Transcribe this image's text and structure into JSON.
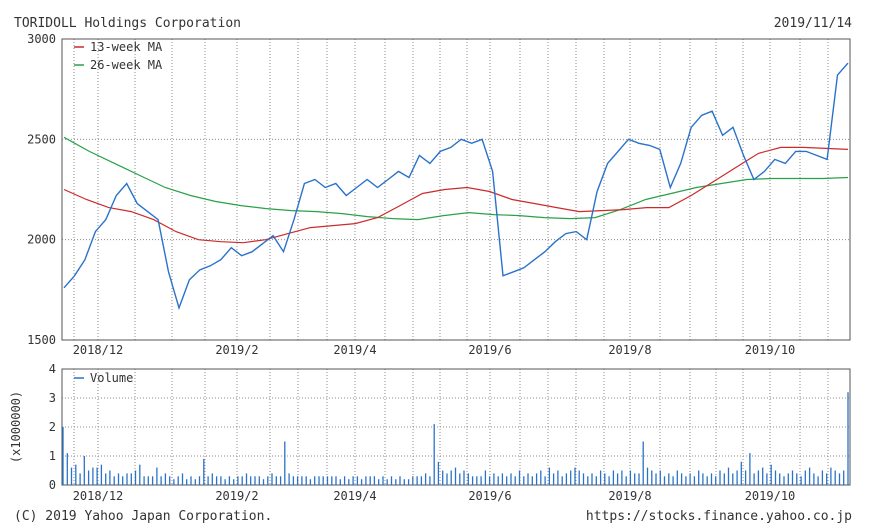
{
  "header": {
    "company": "TORIDOLL Holdings Corporation",
    "date": "2019/11/14"
  },
  "footer": {
    "copyright": "(C) 2019 Yahoo Japan Corporation.",
    "url": "https://stocks.finance.yahoo.co.jp"
  },
  "colors": {
    "price": "#2a72c9",
    "ma13": "#cc2a2a",
    "ma26": "#2aa048",
    "volume": "#2a72c9",
    "grid": "#8c8c8c"
  },
  "chart_data": [
    {
      "type": "line",
      "title": "TORIDOLL Holdings Corporation",
      "ylim": [
        1500,
        3000
      ],
      "yticks": [
        1500,
        2000,
        2500,
        3000
      ],
      "grid": true,
      "legend_position": "top-left",
      "x_ticks": [
        "2018/12",
        "2019/2",
        "2019/4",
        "2019/6",
        "2019/8",
        "2019/10"
      ],
      "series": [
        {
          "name": "",
          "color": "#2a72c9",
          "values": [
            1760,
            1820,
            1900,
            2040,
            2100,
            2220,
            2280,
            2180,
            2140,
            2100,
            1840,
            1660,
            1800,
            1850,
            1870,
            1900,
            1960,
            1920,
            1940,
            1980,
            2020,
            1940,
            2100,
            2280,
            2300,
            2260,
            2280,
            2220,
            2260,
            2300,
            2260,
            2300,
            2340,
            2310,
            2420,
            2380,
            2440,
            2460,
            2500,
            2480,
            2500,
            2340,
            1820,
            1840,
            1860,
            1900,
            1940,
            1990,
            2030,
            2040,
            2000,
            2240,
            2380,
            2440,
            2500,
            2480,
            2470,
            2450,
            2260,
            2380,
            2560,
            2620,
            2640,
            2520,
            2560,
            2420,
            2300,
            2340,
            2400,
            2380,
            2440,
            2440,
            2420,
            2400,
            2820,
            2880
          ]
        },
        {
          "name": "13-week MA",
          "color": "#cc2a2a",
          "values": [
            2250,
            2200,
            2160,
            2140,
            2100,
            2040,
            2000,
            1990,
            1985,
            2000,
            2030,
            2060,
            2070,
            2080,
            2110,
            2170,
            2230,
            2250,
            2260,
            2240,
            2200,
            2180,
            2160,
            2140,
            2145,
            2150,
            2160,
            2160,
            2220,
            2290,
            2360,
            2430,
            2460,
            2460,
            2455,
            2450
          ]
        },
        {
          "name": "26-week MA",
          "color": "#2aa048",
          "values": [
            2510,
            2440,
            2380,
            2320,
            2260,
            2220,
            2190,
            2170,
            2155,
            2145,
            2140,
            2130,
            2115,
            2105,
            2100,
            2120,
            2135,
            2125,
            2120,
            2110,
            2105,
            2110,
            2150,
            2200,
            2230,
            2260,
            2280,
            2300,
            2305,
            2305,
            2305,
            2310
          ]
        }
      ]
    },
    {
      "type": "bar",
      "ylabel": "(x1000000)",
      "ylim": [
        0,
        4
      ],
      "yticks": [
        0,
        1,
        2,
        3,
        4
      ],
      "grid": true,
      "legend_position": "top-left",
      "x_ticks": [
        "2018/12",
        "2019/2",
        "2019/4",
        "2019/6",
        "2019/8",
        "2019/10"
      ],
      "series": [
        {
          "name": "Volume",
          "color": "#2a72c9",
          "values": [
            2.0,
            1.1,
            0.6,
            0.7,
            0.4,
            1.0,
            0.5,
            0.6,
            0.6,
            0.7,
            0.4,
            0.5,
            0.3,
            0.4,
            0.3,
            0.4,
            0.4,
            0.5,
            0.7,
            0.3,
            0.3,
            0.3,
            0.6,
            0.3,
            0.4,
            0.3,
            0.2,
            0.3,
            0.4,
            0.2,
            0.3,
            0.2,
            0.3,
            0.9,
            0.3,
            0.4,
            0.3,
            0.3,
            0.2,
            0.3,
            0.2,
            0.3,
            0.3,
            0.4,
            0.3,
            0.3,
            0.3,
            0.2,
            0.3,
            0.4,
            0.3,
            0.3,
            1.5,
            0.4,
            0.3,
            0.3,
            0.3,
            0.3,
            0.2,
            0.3,
            0.3,
            0.3,
            0.3,
            0.3,
            0.3,
            0.2,
            0.3,
            0.2,
            0.3,
            0.3,
            0.2,
            0.3,
            0.3,
            0.3,
            0.2,
            0.3,
            0.2,
            0.3,
            0.2,
            0.3,
            0.2,
            0.2,
            0.3,
            0.3,
            0.3,
            0.4,
            0.3,
            2.1,
            0.8,
            0.5,
            0.4,
            0.5,
            0.6,
            0.4,
            0.5,
            0.4,
            0.3,
            0.3,
            0.3,
            0.5,
            0.3,
            0.4,
            0.3,
            0.4,
            0.3,
            0.4,
            0.3,
            0.5,
            0.3,
            0.4,
            0.3,
            0.4,
            0.5,
            0.3,
            0.6,
            0.4,
            0.5,
            0.3,
            0.4,
            0.5,
            0.6,
            0.5,
            0.4,
            0.3,
            0.4,
            0.3,
            0.5,
            0.4,
            0.3,
            0.5,
            0.4,
            0.5,
            0.3,
            0.5,
            0.4,
            0.4,
            1.5,
            0.6,
            0.5,
            0.4,
            0.5,
            0.3,
            0.4,
            0.3,
            0.5,
            0.4,
            0.3,
            0.4,
            0.3,
            0.5,
            0.4,
            0.3,
            0.4,
            0.3,
            0.5,
            0.4,
            0.6,
            0.4,
            0.5,
            0.8,
            0.5,
            1.1,
            0.4,
            0.5,
            0.6,
            0.4,
            0.7,
            0.5,
            0.4,
            0.3,
            0.4,
            0.5,
            0.4,
            0.3,
            0.5,
            0.6,
            0.4,
            0.3,
            0.5,
            0.4,
            0.6,
            0.5,
            0.4,
            0.5,
            3.2
          ]
        }
      ]
    }
  ]
}
